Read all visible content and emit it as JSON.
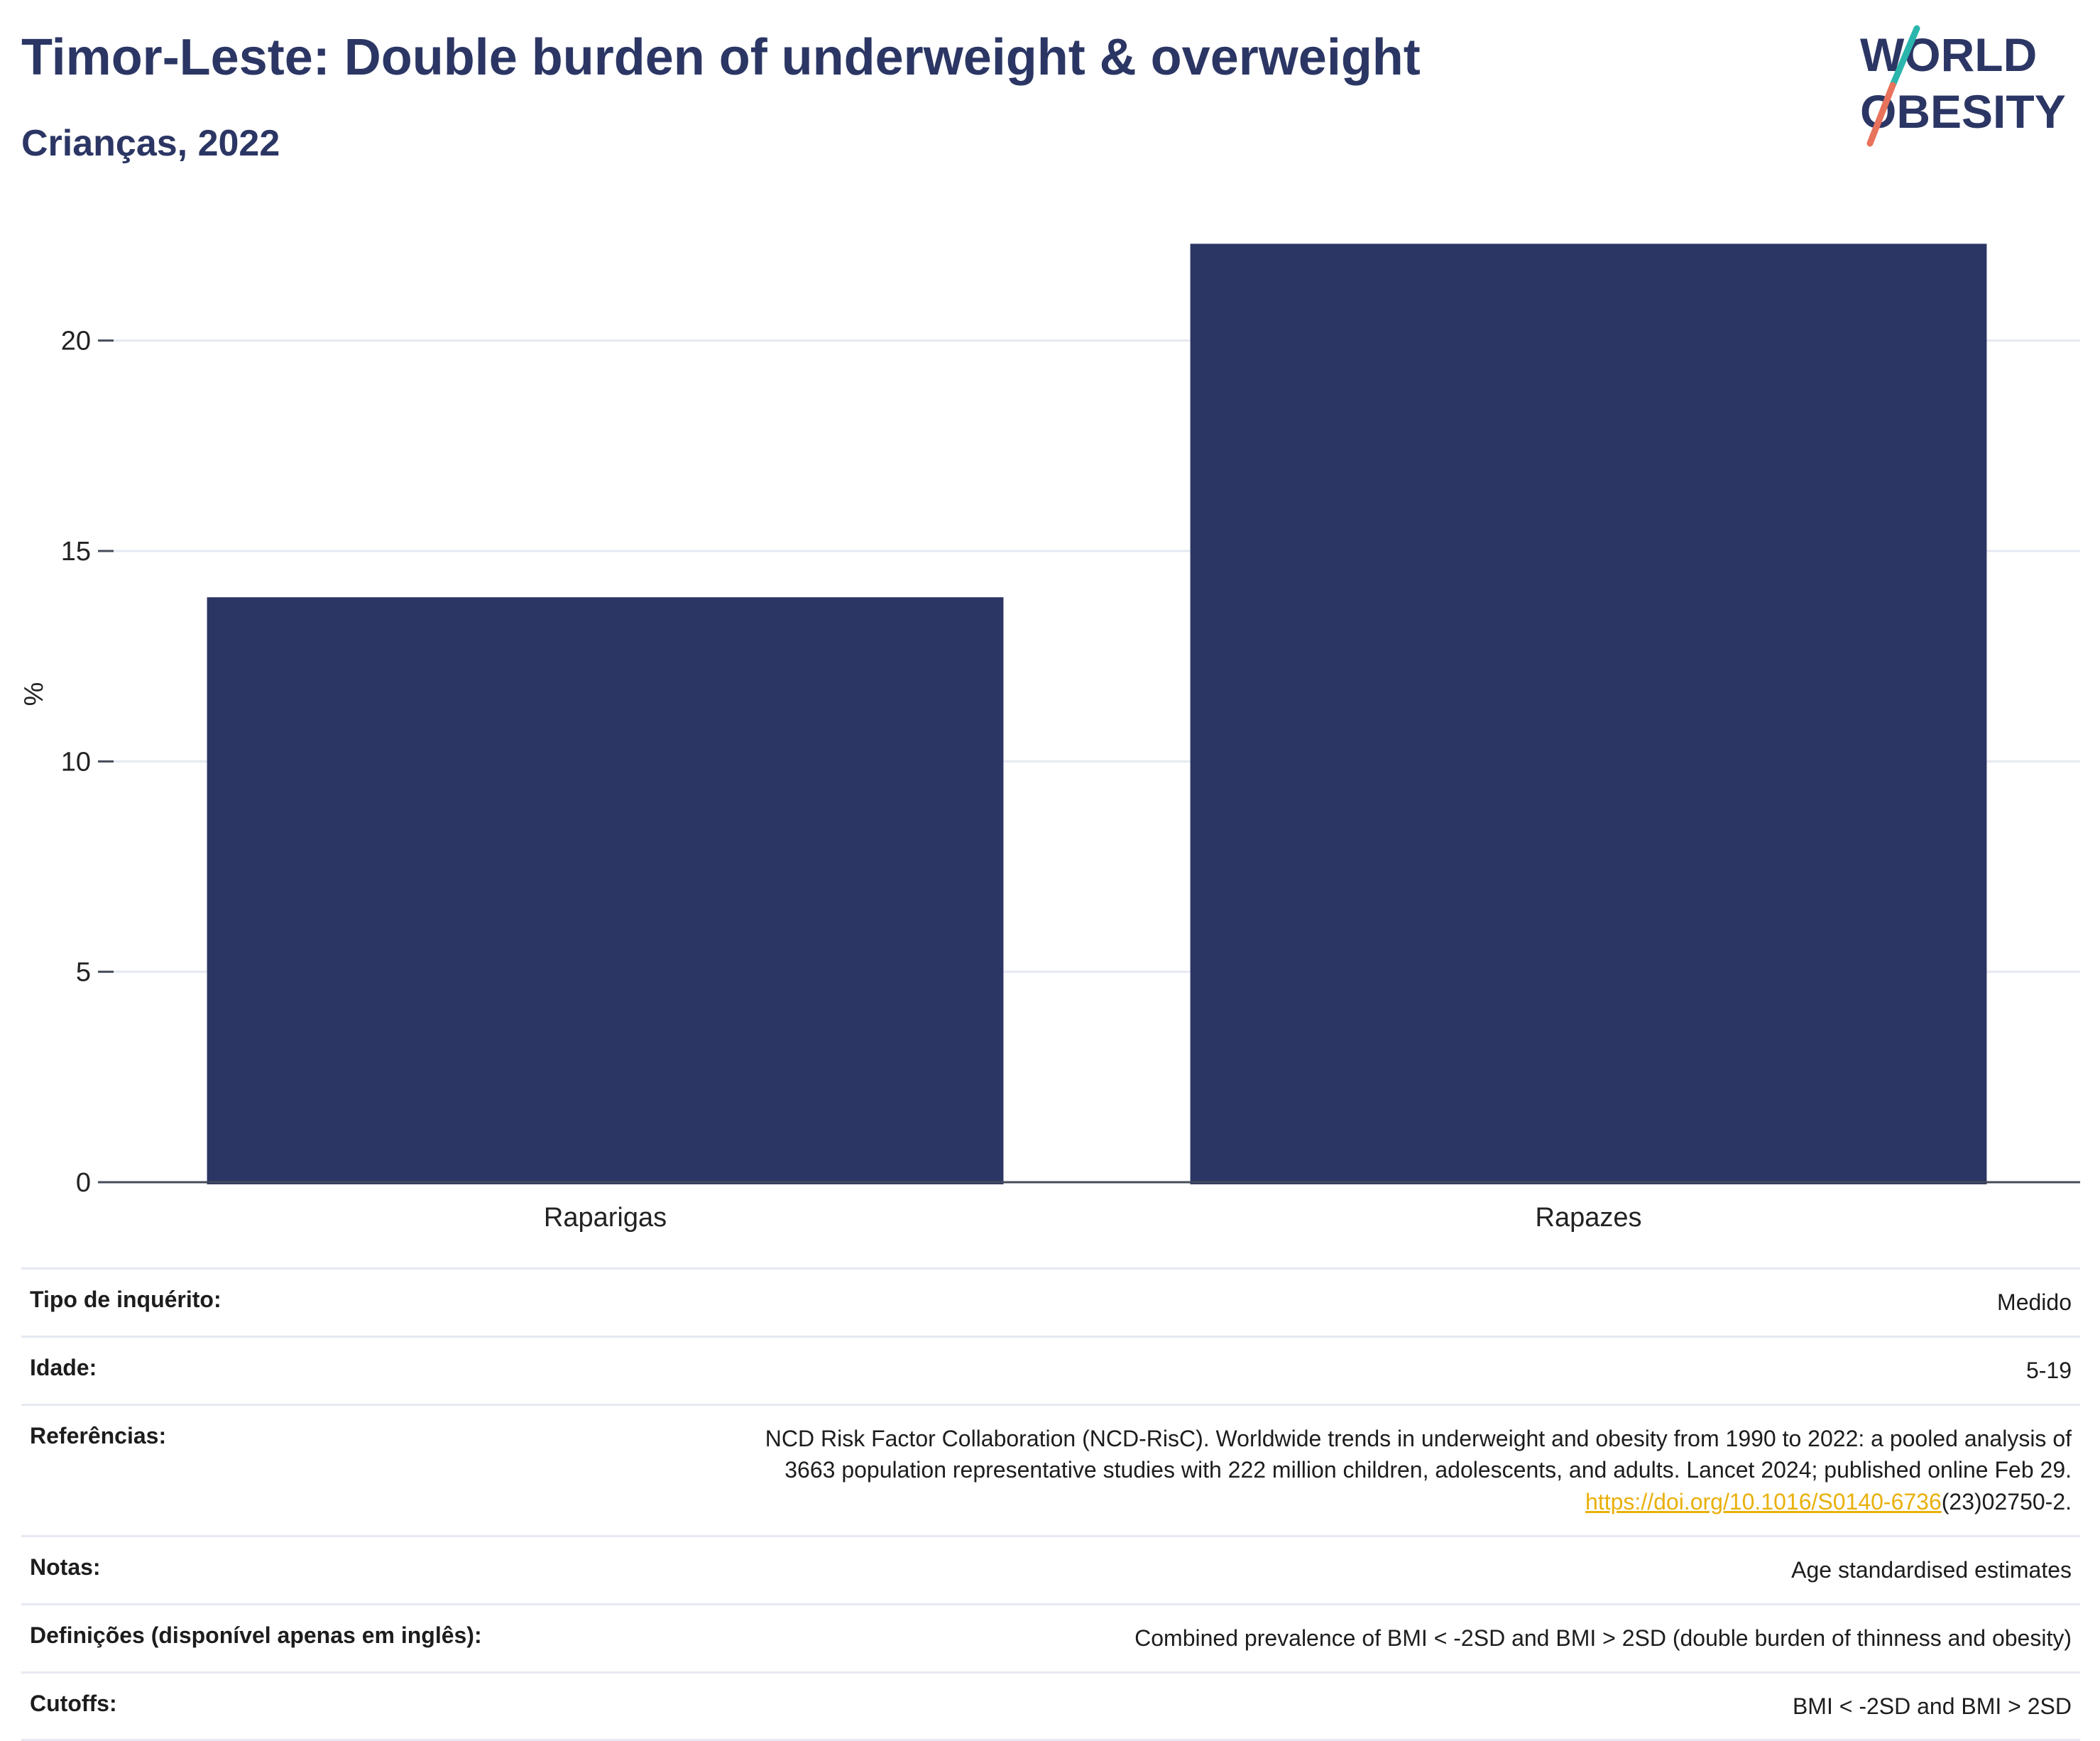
{
  "header": {
    "title": "Timor-Leste: Double burden of underweight & overweight",
    "subtitle": "Crianças, 2022"
  },
  "logo": {
    "line1": "WORLD",
    "line2": "OBESITY"
  },
  "colors": {
    "bar": "#2b3664",
    "title": "#2b3664",
    "grid": "#e6e9f2",
    "link": "#e9b00b",
    "logo_teal": "#2bb6ad",
    "logo_coral": "#e8725b"
  },
  "chart_data": {
    "type": "bar",
    "categories": [
      "Raparigas",
      "Rapazes"
    ],
    "values": [
      13.9,
      22.3
    ],
    "ylabel": "%",
    "xlabel": "",
    "ylim": [
      0,
      23.2
    ],
    "yticks": [
      0,
      5,
      10,
      15,
      20
    ],
    "grid": true
  },
  "info": {
    "survey_type_label": "Tipo de inquérito:",
    "survey_type_value": "Medido",
    "age_label": "Idade:",
    "age_value": "5-19",
    "references_label": "Referências:",
    "references_line1": "NCD Risk Factor Collaboration (NCD-RisC). Worldwide trends in underweight and obesity from 1990 to 2022: a pooled analysis of",
    "references_line2": "3663 population representative studies with 222 million children, adolescents, and adults. Lancet 2024; published online Feb 29.",
    "references_link": "https://doi.org/10.1016/S0140-6736",
    "references_tail": "(23)02750-2.",
    "notes_label": "Notas:",
    "notes_value": "Age standardised estimates",
    "definitions_label": "Definições (disponível apenas em inglês):",
    "definitions_value": "Combined prevalence of BMI < -2SD and BMI > 2SD (double burden of thinness and obesity)",
    "cutoffs_label": "Cutoffs:",
    "cutoffs_value": "BMI < -2SD and BMI > 2SD"
  }
}
